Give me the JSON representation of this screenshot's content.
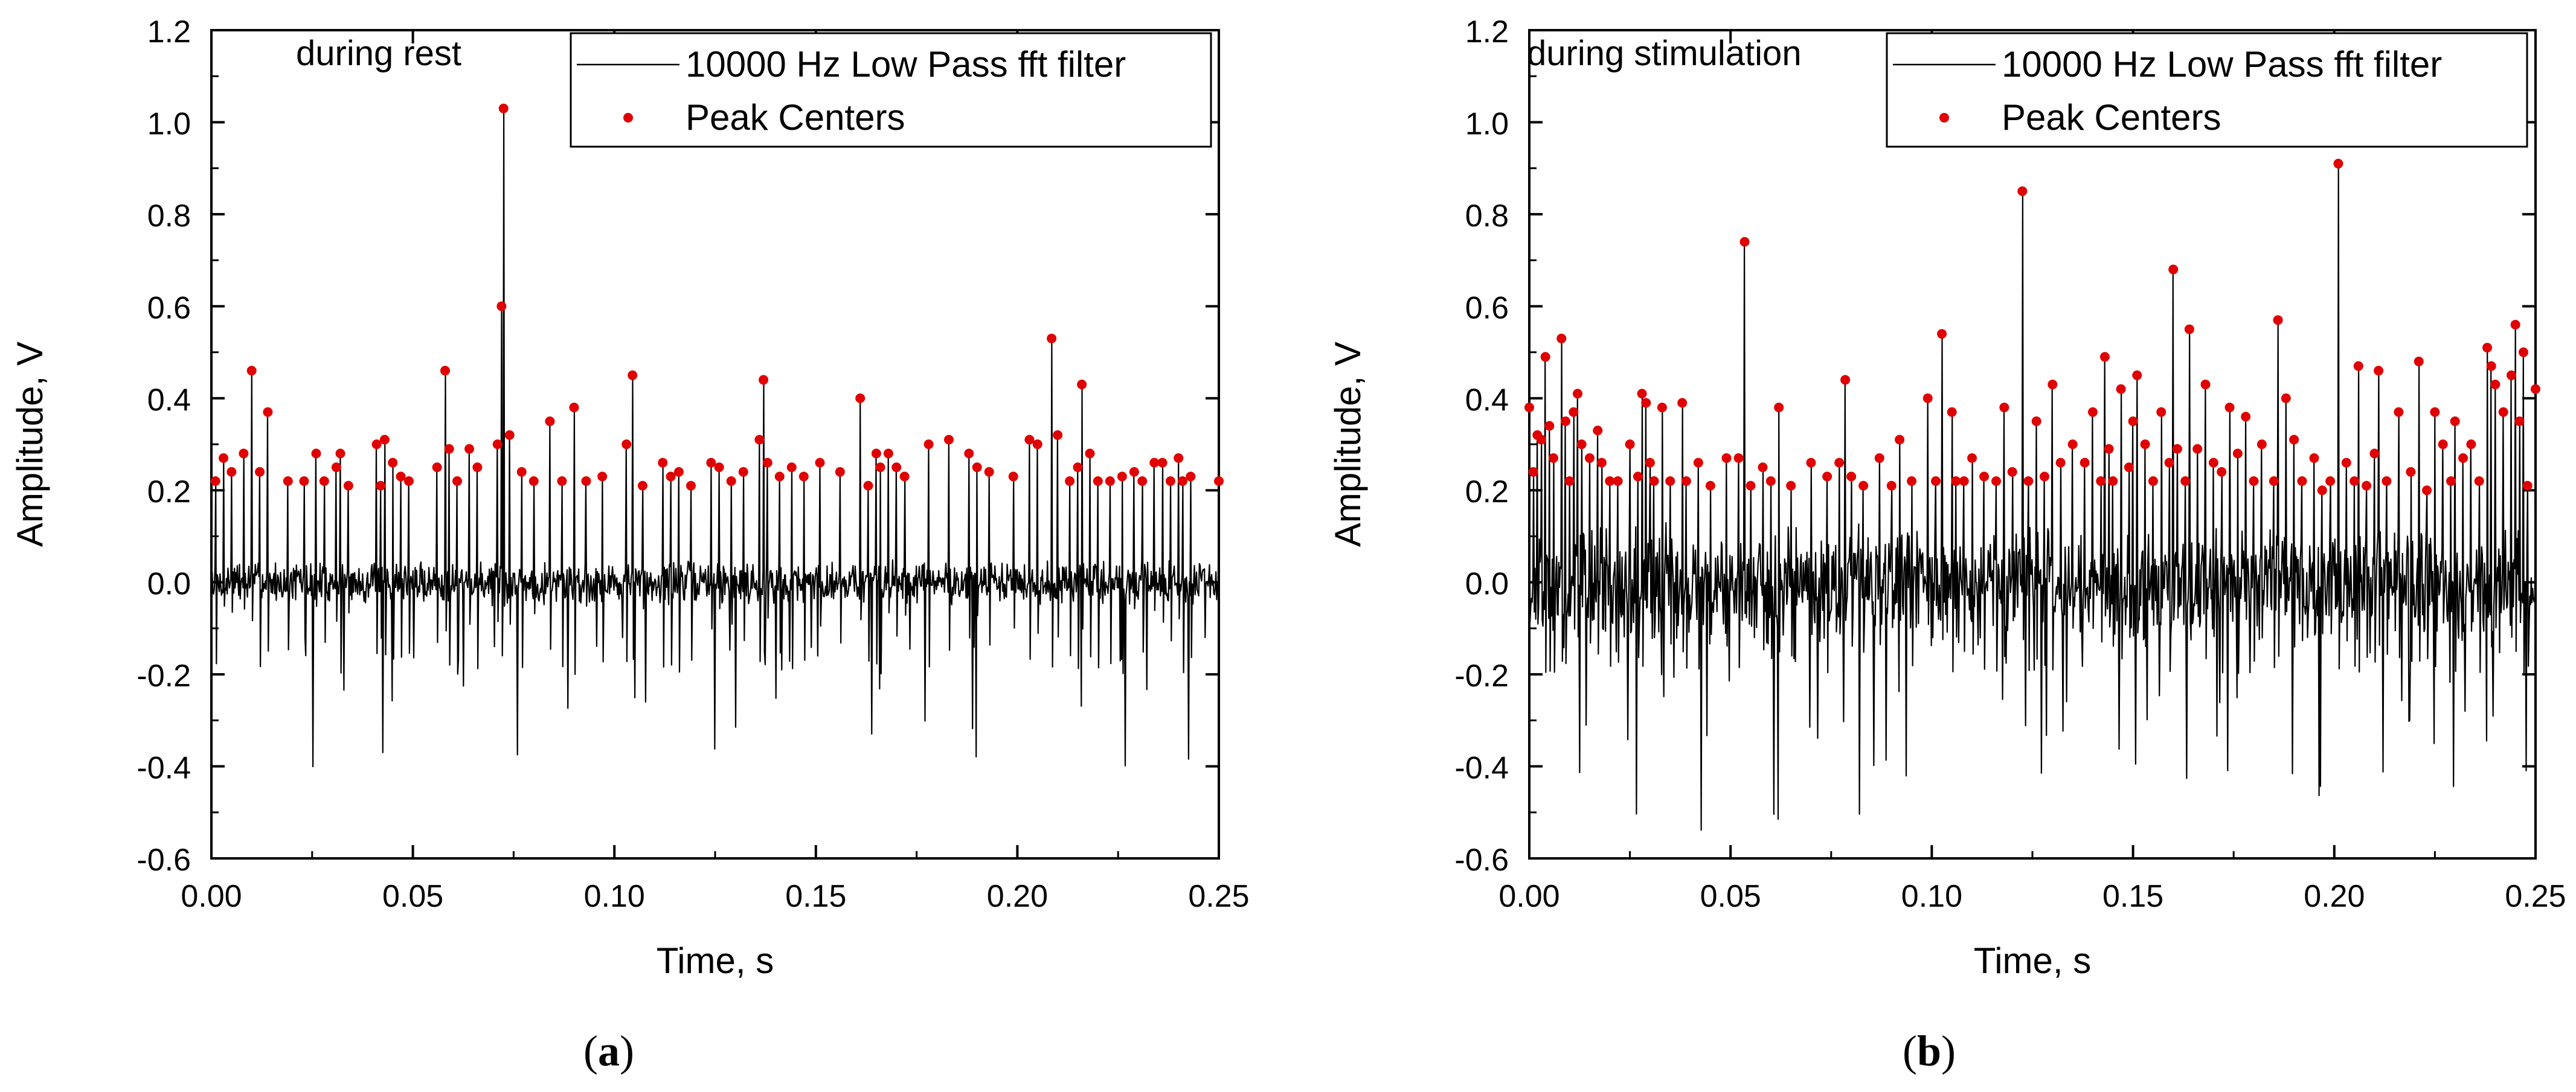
{
  "figure": {
    "label_a": "a",
    "label_b": "b"
  },
  "chart_data": [
    {
      "type": "line",
      "panel": "a",
      "annotation": "during rest",
      "xlabel": "Time, s",
      "ylabel": "Amplitude, V",
      "xlim": [
        0,
        0.25
      ],
      "ylim": [
        -0.6,
        1.2
      ],
      "xticks": [
        0.0,
        0.05,
        0.1,
        0.15,
        0.2,
        0.25
      ],
      "xtick_labels": [
        "0.00",
        "0.05",
        "0.10",
        "0.15",
        "0.20",
        "0.25"
      ],
      "yticks": [
        -0.6,
        -0.4,
        -0.2,
        0.0,
        0.2,
        0.4,
        0.6,
        0.8,
        1.0,
        1.2
      ],
      "ytick_labels": [
        "-0.6",
        "-0.4",
        "-0.2",
        "0.0",
        "0.2",
        "0.4",
        "0.6",
        "0.8",
        "1.0",
        "1.2"
      ],
      "legend": [
        {
          "name": "10000 Hz Low Pass fft filter",
          "style": "line",
          "color": "#000000"
        },
        {
          "name": "Peak Centers",
          "style": "dot",
          "color": "#e00000"
        }
      ],
      "legend_position": "top-right",
      "signal": {
        "noise_amplitude": 0.035,
        "n_points": 1400,
        "seed": 7,
        "neg_spike_min": -0.45,
        "neg_spike_count": 45
      },
      "peaks": [
        [
          0.001,
          0.22
        ],
        [
          0.003,
          0.27
        ],
        [
          0.005,
          0.24
        ],
        [
          0.008,
          0.28
        ],
        [
          0.01,
          0.46
        ],
        [
          0.012,
          0.24
        ],
        [
          0.014,
          0.37
        ],
        [
          0.019,
          0.22
        ],
        [
          0.023,
          0.22
        ],
        [
          0.026,
          0.28
        ],
        [
          0.028,
          0.22
        ],
        [
          0.031,
          0.25
        ],
        [
          0.032,
          0.28
        ],
        [
          0.034,
          0.21
        ],
        [
          0.041,
          0.3
        ],
        [
          0.042,
          0.21
        ],
        [
          0.043,
          0.31
        ],
        [
          0.045,
          0.26
        ],
        [
          0.047,
          0.23
        ],
        [
          0.049,
          0.22
        ],
        [
          0.056,
          0.25
        ],
        [
          0.058,
          0.46
        ],
        [
          0.059,
          0.29
        ],
        [
          0.061,
          0.22
        ],
        [
          0.064,
          0.29
        ],
        [
          0.066,
          0.25
        ],
        [
          0.071,
          0.3
        ],
        [
          0.072,
          0.6
        ],
        [
          0.0725,
          1.03
        ],
        [
          0.074,
          0.32
        ],
        [
          0.077,
          0.24
        ],
        [
          0.08,
          0.22
        ],
        [
          0.084,
          0.35
        ],
        [
          0.087,
          0.22
        ],
        [
          0.09,
          0.38
        ],
        [
          0.093,
          0.22
        ],
        [
          0.097,
          0.23
        ],
        [
          0.103,
          0.3
        ],
        [
          0.1045,
          0.45
        ],
        [
          0.107,
          0.21
        ],
        [
          0.112,
          0.26
        ],
        [
          0.114,
          0.23
        ],
        [
          0.116,
          0.24
        ],
        [
          0.119,
          0.21
        ],
        [
          0.124,
          0.26
        ],
        [
          0.126,
          0.25
        ],
        [
          0.129,
          0.22
        ],
        [
          0.132,
          0.24
        ],
        [
          0.136,
          0.31
        ],
        [
          0.137,
          0.44
        ],
        [
          0.138,
          0.26
        ],
        [
          0.141,
          0.23
        ],
        [
          0.144,
          0.25
        ],
        [
          0.147,
          0.23
        ],
        [
          0.151,
          0.26
        ],
        [
          0.156,
          0.24
        ],
        [
          0.161,
          0.4
        ],
        [
          0.163,
          0.21
        ],
        [
          0.165,
          0.28
        ],
        [
          0.166,
          0.25
        ],
        [
          0.168,
          0.28
        ],
        [
          0.17,
          0.25
        ],
        [
          0.172,
          0.23
        ],
        [
          0.178,
          0.3
        ],
        [
          0.183,
          0.31
        ],
        [
          0.188,
          0.28
        ],
        [
          0.19,
          0.25
        ],
        [
          0.193,
          0.24
        ],
        [
          0.199,
          0.23
        ],
        [
          0.203,
          0.31
        ],
        [
          0.205,
          0.3
        ],
        [
          0.2085,
          0.53
        ],
        [
          0.21,
          0.32
        ],
        [
          0.213,
          0.22
        ],
        [
          0.215,
          0.25
        ],
        [
          0.216,
          0.43
        ],
        [
          0.218,
          0.28
        ],
        [
          0.22,
          0.22
        ],
        [
          0.223,
          0.22
        ],
        [
          0.226,
          0.23
        ],
        [
          0.229,
          0.24
        ],
        [
          0.231,
          0.22
        ],
        [
          0.234,
          0.26
        ],
        [
          0.236,
          0.26
        ],
        [
          0.238,
          0.22
        ],
        [
          0.24,
          0.27
        ],
        [
          0.241,
          0.22
        ],
        [
          0.243,
          0.23
        ],
        [
          0.25,
          0.22
        ]
      ]
    },
    {
      "type": "line",
      "panel": "b",
      "annotation": "during stimulation",
      "xlabel": "Time, s",
      "ylabel": "Amplitude, V",
      "xlim": [
        0,
        0.25
      ],
      "ylim": [
        -0.6,
        1.2
      ],
      "xticks": [
        0.0,
        0.05,
        0.1,
        0.15,
        0.2,
        0.25
      ],
      "xtick_labels": [
        "0.00",
        "0.05",
        "0.10",
        "0.15",
        "0.20",
        "0.25"
      ],
      "yticks": [
        -0.6,
        -0.4,
        -0.2,
        0.0,
        0.2,
        0.4,
        0.6,
        0.8,
        1.0,
        1.2
      ],
      "ytick_labels": [
        "-0.6",
        "-0.4",
        "-0.2",
        "0.0",
        "0.2",
        "0.4",
        "0.6",
        "0.8",
        "1.0",
        "1.2"
      ],
      "legend": [
        {
          "name": "10000 Hz Low Pass fft filter",
          "style": "line",
          "color": "#000000"
        },
        {
          "name": "Peak Centers",
          "style": "dot",
          "color": "#e00000"
        }
      ],
      "legend_position": "top-right",
      "signal": {
        "noise_amplitude": 0.09,
        "n_points": 1400,
        "seed": 19,
        "neg_spike_min": -0.54,
        "neg_spike_count": 90
      },
      "peaks": [
        [
          0.0,
          0.38
        ],
        [
          0.001,
          0.24
        ],
        [
          0.002,
          0.32
        ],
        [
          0.003,
          0.31
        ],
        [
          0.004,
          0.49
        ],
        [
          0.005,
          0.34
        ],
        [
          0.006,
          0.27
        ],
        [
          0.008,
          0.53
        ],
        [
          0.009,
          0.35
        ],
        [
          0.01,
          0.22
        ],
        [
          0.011,
          0.37
        ],
        [
          0.012,
          0.41
        ],
        [
          0.013,
          0.3
        ],
        [
          0.015,
          0.27
        ],
        [
          0.017,
          0.33
        ],
        [
          0.018,
          0.26
        ],
        [
          0.02,
          0.22
        ],
        [
          0.022,
          0.22
        ],
        [
          0.025,
          0.3
        ],
        [
          0.027,
          0.23
        ],
        [
          0.028,
          0.41
        ],
        [
          0.029,
          0.39
        ],
        [
          0.03,
          0.26
        ],
        [
          0.031,
          0.22
        ],
        [
          0.033,
          0.38
        ],
        [
          0.035,
          0.22
        ],
        [
          0.038,
          0.39
        ],
        [
          0.039,
          0.22
        ],
        [
          0.042,
          0.26
        ],
        [
          0.045,
          0.21
        ],
        [
          0.049,
          0.27
        ],
        [
          0.052,
          0.27
        ],
        [
          0.0535,
          0.74
        ],
        [
          0.055,
          0.21
        ],
        [
          0.058,
          0.25
        ],
        [
          0.06,
          0.22
        ],
        [
          0.062,
          0.38
        ],
        [
          0.065,
          0.21
        ],
        [
          0.07,
          0.26
        ],
        [
          0.074,
          0.23
        ],
        [
          0.077,
          0.26
        ],
        [
          0.0785,
          0.44
        ],
        [
          0.08,
          0.23
        ],
        [
          0.083,
          0.21
        ],
        [
          0.087,
          0.27
        ],
        [
          0.09,
          0.21
        ],
        [
          0.092,
          0.31
        ],
        [
          0.095,
          0.22
        ],
        [
          0.099,
          0.4
        ],
        [
          0.101,
          0.22
        ],
        [
          0.1025,
          0.54
        ],
        [
          0.105,
          0.37
        ],
        [
          0.106,
          0.22
        ],
        [
          0.108,
          0.22
        ],
        [
          0.11,
          0.27
        ],
        [
          0.113,
          0.23
        ],
        [
          0.116,
          0.22
        ],
        [
          0.118,
          0.38
        ],
        [
          0.12,
          0.24
        ],
        [
          0.1225,
          0.85
        ],
        [
          0.124,
          0.22
        ],
        [
          0.126,
          0.35
        ],
        [
          0.128,
          0.23
        ],
        [
          0.13,
          0.43
        ],
        [
          0.132,
          0.26
        ],
        [
          0.135,
          0.3
        ],
        [
          0.138,
          0.26
        ],
        [
          0.14,
          0.37
        ],
        [
          0.142,
          0.22
        ],
        [
          0.143,
          0.49
        ],
        [
          0.144,
          0.29
        ],
        [
          0.145,
          0.22
        ],
        [
          0.147,
          0.42
        ],
        [
          0.149,
          0.25
        ],
        [
          0.15,
          0.35
        ],
        [
          0.151,
          0.45
        ],
        [
          0.153,
          0.3
        ],
        [
          0.155,
          0.22
        ],
        [
          0.157,
          0.37
        ],
        [
          0.159,
          0.26
        ],
        [
          0.16,
          0.68
        ],
        [
          0.161,
          0.29
        ],
        [
          0.163,
          0.22
        ],
        [
          0.164,
          0.55
        ],
        [
          0.166,
          0.29
        ],
        [
          0.168,
          0.43
        ],
        [
          0.17,
          0.26
        ],
        [
          0.172,
          0.24
        ],
        [
          0.174,
          0.38
        ],
        [
          0.176,
          0.28
        ],
        [
          0.178,
          0.36
        ],
        [
          0.18,
          0.22
        ],
        [
          0.182,
          0.3
        ],
        [
          0.185,
          0.22
        ],
        [
          0.186,
          0.57
        ],
        [
          0.188,
          0.4
        ],
        [
          0.19,
          0.31
        ],
        [
          0.192,
          0.22
        ],
        [
          0.195,
          0.27
        ],
        [
          0.197,
          0.2
        ],
        [
          0.199,
          0.22
        ],
        [
          0.201,
          0.91
        ],
        [
          0.203,
          0.26
        ],
        [
          0.205,
          0.22
        ],
        [
          0.206,
          0.47
        ],
        [
          0.208,
          0.21
        ],
        [
          0.21,
          0.28
        ],
        [
          0.211,
          0.46
        ],
        [
          0.213,
          0.22
        ],
        [
          0.216,
          0.37
        ],
        [
          0.219,
          0.24
        ],
        [
          0.221,
          0.48
        ],
        [
          0.223,
          0.2
        ],
        [
          0.225,
          0.37
        ],
        [
          0.227,
          0.3
        ],
        [
          0.229,
          0.22
        ],
        [
          0.23,
          0.35
        ],
        [
          0.232,
          0.27
        ],
        [
          0.234,
          0.3
        ],
        [
          0.236,
          0.22
        ],
        [
          0.238,
          0.51
        ],
        [
          0.239,
          0.47
        ],
        [
          0.24,
          0.43
        ],
        [
          0.242,
          0.37
        ],
        [
          0.244,
          0.45
        ],
        [
          0.245,
          0.56
        ],
        [
          0.246,
          0.35
        ],
        [
          0.247,
          0.5
        ],
        [
          0.248,
          0.21
        ],
        [
          0.25,
          0.42
        ]
      ]
    }
  ]
}
